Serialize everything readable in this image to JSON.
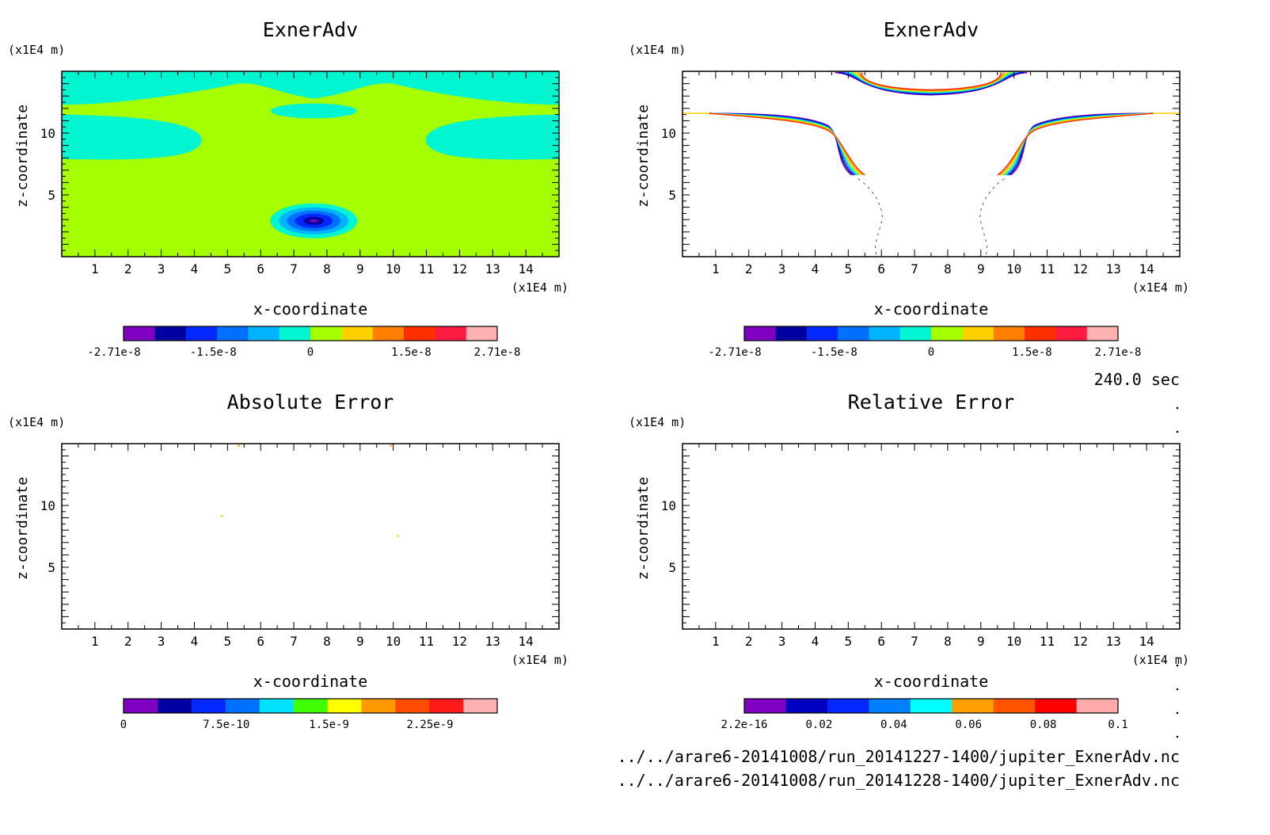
{
  "time_label": "240.0 sec",
  "footer": {
    "files": [
      "../../arare6-20141008/run_20141227-1400/jupiter_ExnerAdv.nc",
      "../../arare6-20141008/run_20141228-1400/jupiter_ExnerAdv.nc"
    ]
  },
  "colors": {
    "exner_palette": [
      "#7f00c0",
      "#0000a0",
      "#0028ff",
      "#0070ff",
      "#00b4ff",
      "#00f5d0",
      "#a6ff00",
      "#ffd000",
      "#ff8000",
      "#ff3000",
      "#ff1a40",
      "#ffb0b0"
    ],
    "abs_palette": [
      "#7f00c0",
      "#0000a0",
      "#0028ff",
      "#0070ff",
      "#00e0ff",
      "#40ff00",
      "#ffff00",
      "#ff9900",
      "#ff4c00",
      "#ff1a1a",
      "#ffb0b0"
    ],
    "rel_palette": [
      "#7f00c0",
      "#0000c0",
      "#0028ff",
      "#0080ff",
      "#00ffff",
      "#ffa000",
      "#ff5500",
      "#ff0000",
      "#ffaaaa"
    ],
    "contour_rainbow": [
      "#7f00c0",
      "#0000a0",
      "#0028ff",
      "#00b4ff",
      "#00f5d0",
      "#a6ff00",
      "#ffd000",
      "#ff8000",
      "#ff3000"
    ]
  },
  "chart_data": [
    {
      "type": "heatmap",
      "title": "ExnerAdv",
      "xlabel": "x-coordinate",
      "ylabel": "z-coordinate",
      "x_unit": "(x1E4 m)",
      "y_unit": "(x1E4 m)",
      "x_ticks": [
        "1",
        "2",
        "3",
        "4",
        "5",
        "6",
        "7",
        "8",
        "9",
        "10",
        "11",
        "12",
        "13",
        "14"
      ],
      "y_ticks": [
        "5",
        "10"
      ],
      "xlim": [
        0,
        15
      ],
      "ylim": [
        0,
        15
      ],
      "colorbar_ticks": [
        "-2.71e-8",
        "-1.5e-8",
        "0",
        "1.5e-8",
        "2.71e-8"
      ],
      "colorbar_range": [
        -2.71e-08,
        2.71e-08
      ],
      "field": {
        "background": 4e-09,
        "bands": [
          {
            "z": [
              12.2,
              15.0
            ],
            "level": -1e-09
          },
          {
            "z": [
              7.8,
              11.5
            ],
            "level": -1e-09
          }
        ],
        "min_at": {
          "x": 7.6,
          "z": 2.9,
          "value": -2.71e-08
        }
      }
    },
    {
      "type": "heatmap",
      "title": "ExnerAdv",
      "xlabel": "x-coordinate",
      "ylabel": "z-coordinate",
      "x_unit": "(x1E4 m)",
      "y_unit": "(x1E4 m)",
      "x_ticks": [
        "1",
        "2",
        "3",
        "4",
        "5",
        "6",
        "7",
        "8",
        "9",
        "10",
        "11",
        "12",
        "13",
        "14"
      ],
      "y_ticks": [
        "5",
        "10"
      ],
      "xlim": [
        0,
        15
      ],
      "ylim": [
        0,
        15
      ],
      "colorbar_ticks": [
        "-2.71e-8",
        "-1.5e-8",
        "0",
        "1.5e-8",
        "2.71e-8"
      ],
      "colorbar_range": [
        -2.71e-08,
        2.71e-08
      ]
    },
    {
      "type": "heatmap",
      "title": "Absolute Error",
      "xlabel": "x-coordinate",
      "ylabel": "z-coordinate",
      "x_unit": "(x1E4 m)",
      "y_unit": "(x1E4 m)",
      "x_ticks": [
        "1",
        "2",
        "3",
        "4",
        "5",
        "6",
        "7",
        "8",
        "9",
        "10",
        "11",
        "12",
        "13",
        "14"
      ],
      "y_ticks": [
        "5",
        "10"
      ],
      "xlim": [
        0,
        15
      ],
      "ylim": [
        0,
        15
      ],
      "colorbar_ticks": [
        "0",
        "7.5e-10",
        "1.5e-9",
        "2.25e-9"
      ],
      "colorbar_range": [
        0,
        3e-09
      ]
    },
    {
      "type": "heatmap",
      "title": "Relative Error",
      "xlabel": "x-coordinate",
      "ylabel": "z-coordinate",
      "x_unit": "(x1E4 m)",
      "y_unit": "(x1E4 m)",
      "x_ticks": [
        "1",
        "2",
        "3",
        "4",
        "5",
        "6",
        "7",
        "8",
        "9",
        "10",
        "11",
        "12",
        "13",
        "14"
      ],
      "y_ticks": [
        "5",
        "10"
      ],
      "xlim": [
        0,
        15
      ],
      "ylim": [
        0,
        15
      ],
      "colorbar_ticks": [
        "2.2e-16",
        "0.02",
        "0.04",
        "0.06",
        "0.08",
        "0.1"
      ],
      "colorbar_range": [
        2.2e-16,
        0.1
      ]
    }
  ]
}
